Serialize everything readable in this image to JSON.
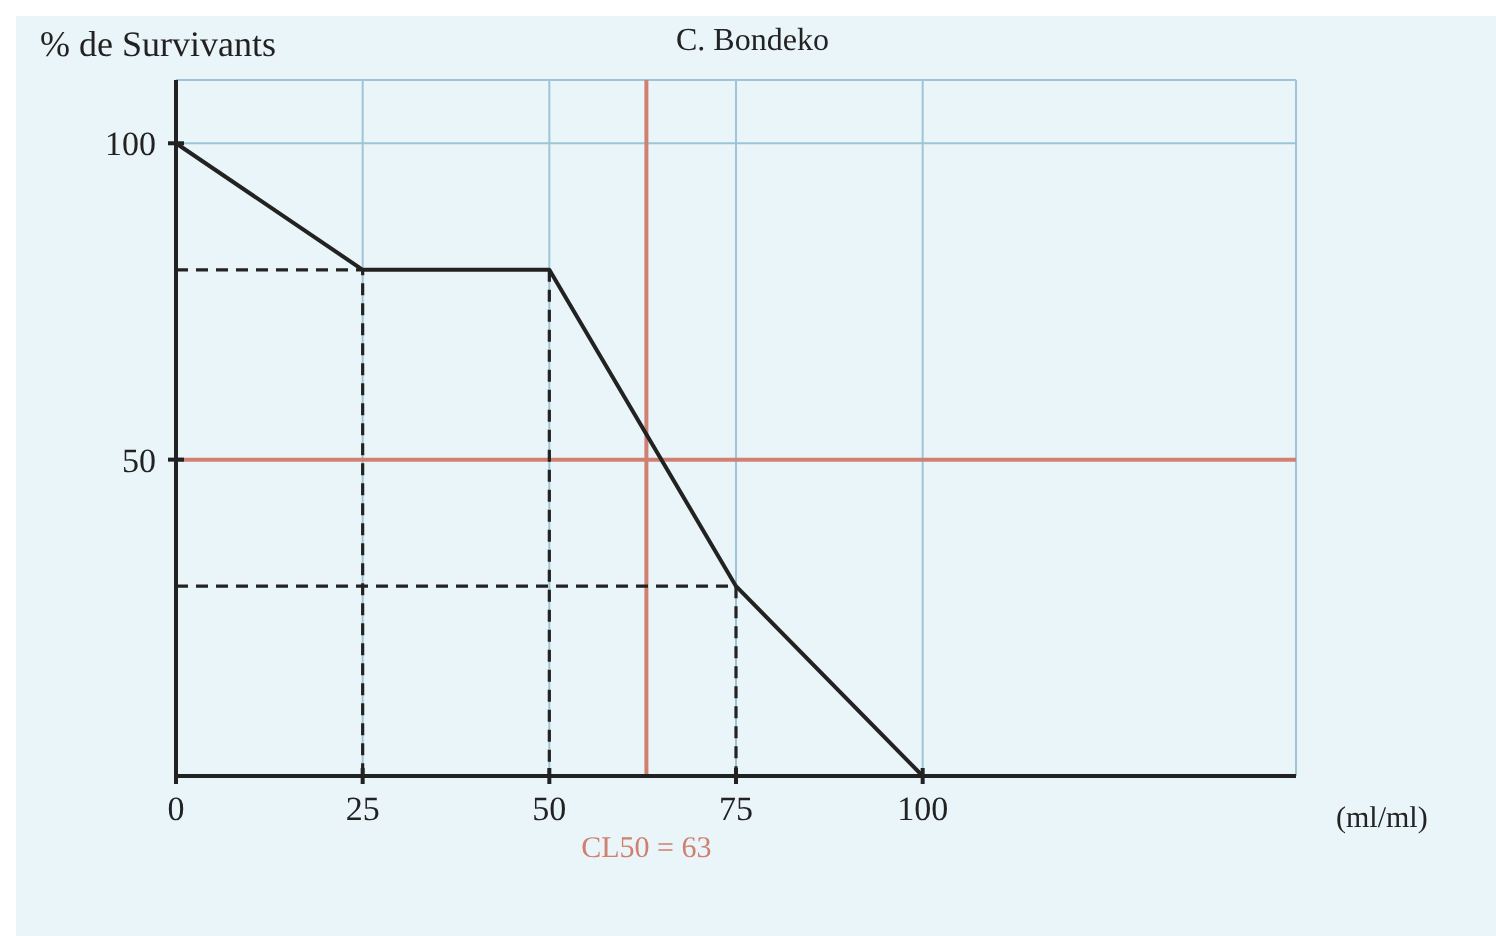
{
  "chart_data": {
    "type": "line",
    "ylabel": "% de Survivants",
    "xlabel": "(ml/ml)",
    "annotations": [
      "C. Bondeko"
    ],
    "xlim": [
      0,
      150
    ],
    "ylim": [
      0,
      110
    ],
    "xticks": [
      0,
      25,
      50,
      75,
      100
    ],
    "yticks": [
      50,
      100
    ],
    "grid": true,
    "marker": "none",
    "series": [
      {
        "color": "#222222",
        "x": [
          0,
          25,
          50,
          75,
          100
        ],
        "values": [
          100,
          80,
          80,
          30,
          0
        ],
        "line_style": "solid"
      },
      {
        "color": "#222222",
        "x": [
          0,
          25,
          25
        ],
        "values": [
          80,
          80,
          0
        ],
        "line_style": "dashed"
      },
      {
        "color": "#222222",
        "x": [
          50,
          50
        ],
        "values": [
          80,
          0
        ],
        "line_style": "dashed"
      },
      {
        "color": "#222222",
        "x": [
          0,
          75,
          75
        ],
        "values": [
          30,
          30,
          0
        ],
        "line_style": "dashed"
      }
    ],
    "ref_lines": [
      {
        "axis": "y",
        "value": 50,
        "color": "#d08070"
      },
      {
        "axis": "x",
        "value": 63,
        "label": "CL50 = 63",
        "color": "#d08070"
      }
    ]
  }
}
